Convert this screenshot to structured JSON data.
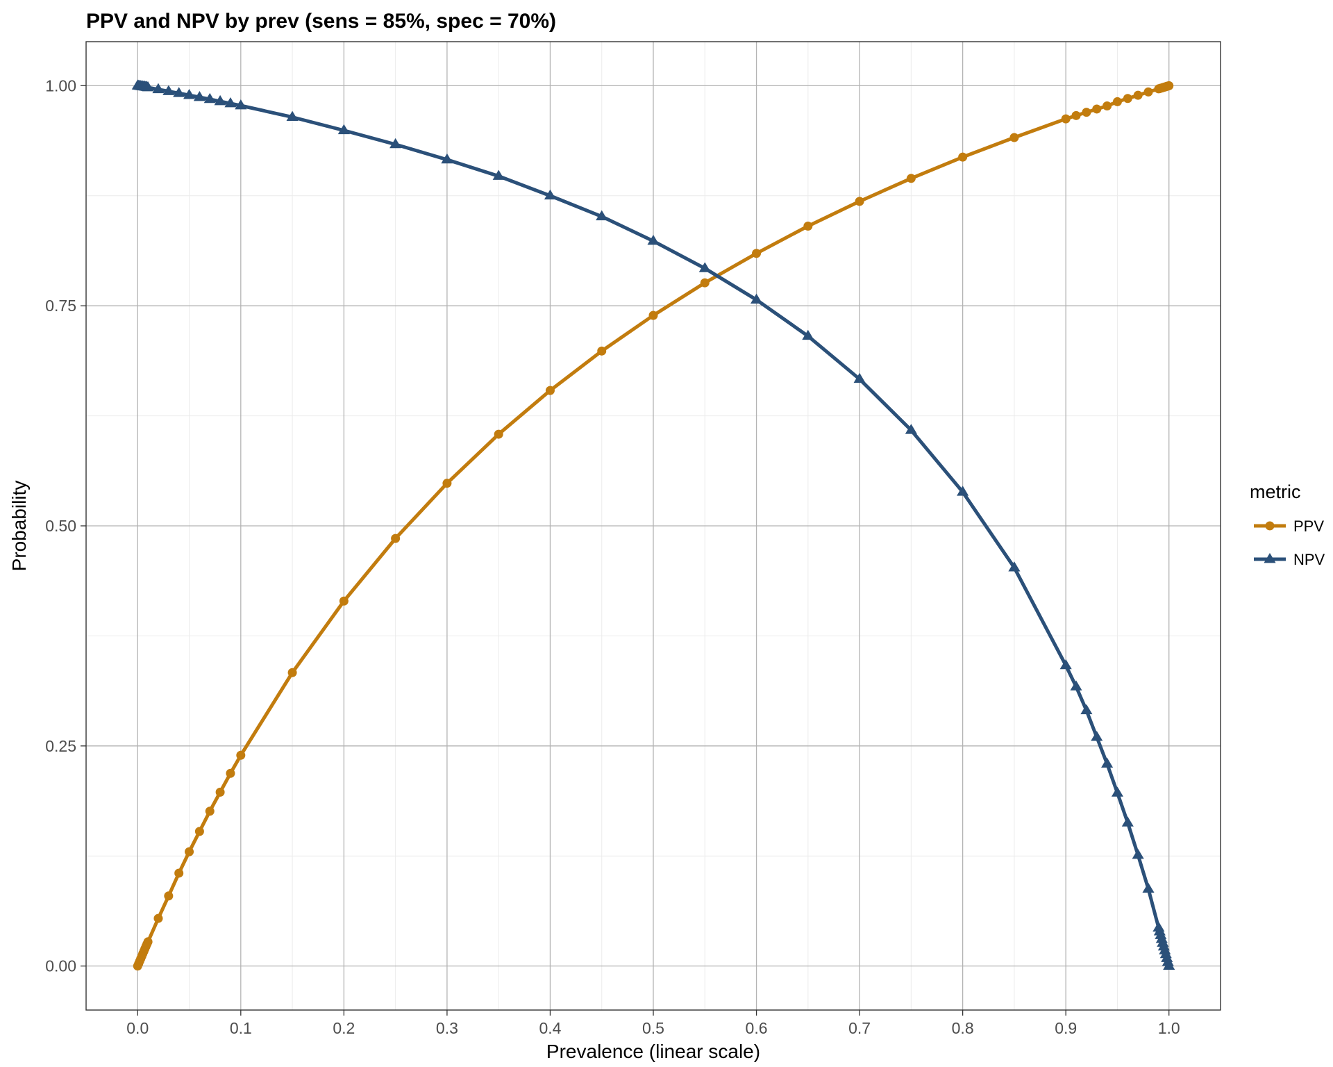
{
  "chart_data": {
    "type": "line",
    "title": "PPV and NPV by prev (sens = 85%, spec = 70%)",
    "xlabel": "Prevalence (linear scale)",
    "ylabel": "Probability",
    "xlim": [
      -0.05,
      1.05
    ],
    "ylim": [
      -0.05,
      1.05
    ],
    "x_ticks": [
      0.0,
      0.1,
      0.2,
      0.3,
      0.4,
      0.5,
      0.6,
      0.7,
      0.8,
      0.9,
      1.0
    ],
    "x_tick_labels": [
      "0.0",
      "0.1",
      "0.2",
      "0.3",
      "0.4",
      "0.5",
      "0.6",
      "0.7",
      "0.8",
      "0.9",
      "1.0"
    ],
    "y_ticks": [
      0.0,
      0.25,
      0.5,
      0.75,
      1.0
    ],
    "y_tick_labels": [
      "0.00",
      "0.25",
      "0.50",
      "0.75",
      "1.00"
    ],
    "grid": true,
    "legend": {
      "title": "metric",
      "position": "right"
    },
    "x": [
      0.0,
      0.001,
      0.002,
      0.003,
      0.004,
      0.005,
      0.006,
      0.007,
      0.008,
      0.009,
      0.01,
      0.02,
      0.03,
      0.04,
      0.05,
      0.06,
      0.07,
      0.08,
      0.09,
      0.1,
      0.15,
      0.2,
      0.25,
      0.3,
      0.35,
      0.4,
      0.45,
      0.5,
      0.55,
      0.6,
      0.65,
      0.7,
      0.75,
      0.8,
      0.85,
      0.9,
      0.91,
      0.92,
      0.93,
      0.94,
      0.95,
      0.96,
      0.97,
      0.98,
      0.99,
      0.991,
      0.992,
      0.993,
      0.994,
      0.995,
      0.996,
      0.997,
      0.998,
      0.999,
      1.0
    ],
    "series": [
      {
        "name": "PPV",
        "color": "#C27C0E",
        "marker": "circle",
        "values": [
          0.0,
          0.0028,
          0.0056,
          0.0084,
          0.0112,
          0.014,
          0.0167,
          0.0195,
          0.0222,
          0.0249,
          0.0275,
          0.0541,
          0.0796,
          0.1055,
          0.1298,
          0.1529,
          0.1759,
          0.1975,
          0.2189,
          0.2394,
          0.3333,
          0.4146,
          0.4857,
          0.5484,
          0.6041,
          0.6538,
          0.6986,
          0.7391,
          0.7761,
          0.8095,
          0.8405,
          0.8686,
          0.8947,
          0.9189,
          0.9411,
          0.9623,
          0.9661,
          0.9698,
          0.9735,
          0.977,
          0.9818,
          0.9855,
          0.9891,
          0.9929,
          0.9964,
          0.9967,
          0.9971,
          0.9974,
          0.9978,
          0.9982,
          0.9985,
          0.9989,
          0.9993,
          0.9996,
          1.0
        ]
      },
      {
        "name": "NPV",
        "color": "#2B5079",
        "marker": "triangle",
        "values": [
          1.0,
          0.9998,
          0.9996,
          0.9994,
          0.9992,
          0.999,
          0.9989,
          0.9987,
          0.9985,
          0.9983,
          0.9979,
          0.9958,
          0.9936,
          0.9914,
          0.9892,
          0.9869,
          0.9846,
          0.9822,
          0.9798,
          0.9774,
          0.9643,
          0.9492,
          0.9333,
          0.916,
          0.8973,
          0.875,
          0.8514,
          0.8235,
          0.7925,
          0.7568,
          0.7156,
          0.6667,
          0.6087,
          0.5385,
          0.4526,
          0.3415,
          0.3173,
          0.2903,
          0.26,
          0.2297,
          0.1967,
          0.1628,
          0.1261,
          0.0876,
          0.0434,
          0.0391,
          0.0348,
          0.0305,
          0.0262,
          0.0219,
          0.0176,
          0.0132,
          0.0088,
          0.0044,
          0.0
        ]
      }
    ]
  }
}
